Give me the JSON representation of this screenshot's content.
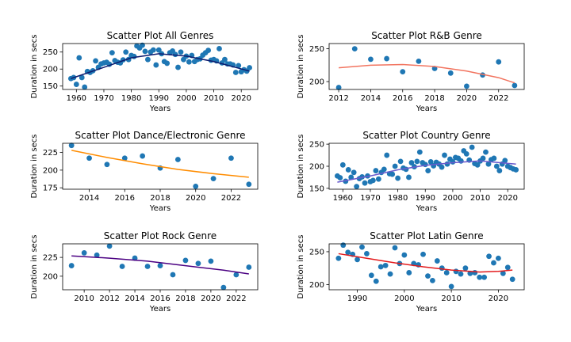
{
  "chart_data": [
    {
      "type": "scatter",
      "title": "Scatter Plot All Genres",
      "xlabel": "Years",
      "ylabel": "Duration in secs",
      "xlim": [
        1955,
        2026
      ],
      "ylim": [
        140,
        275
      ],
      "xticks": [
        1960,
        1970,
        1980,
        1990,
        2000,
        2010,
        2020
      ],
      "yticks": [
        150,
        200,
        250
      ],
      "fit_color": "#0d1b6e",
      "point_color": "#1f77b4",
      "points": [
        [
          1958,
          172
        ],
        [
          1959,
          175
        ],
        [
          1960,
          155
        ],
        [
          1961,
          233
        ],
        [
          1962,
          175
        ],
        [
          1963,
          147
        ],
        [
          1964,
          193
        ],
        [
          1965,
          190
        ],
        [
          1966,
          195
        ],
        [
          1967,
          224
        ],
        [
          1968,
          205
        ],
        [
          1969,
          215
        ],
        [
          1970,
          218
        ],
        [
          1971,
          220
        ],
        [
          1972,
          214
        ],
        [
          1973,
          248
        ],
        [
          1974,
          225
        ],
        [
          1975,
          220
        ],
        [
          1976,
          218
        ],
        [
          1977,
          227
        ],
        [
          1978,
          250
        ],
        [
          1979,
          228
        ],
        [
          1980,
          240
        ],
        [
          1981,
          237
        ],
        [
          1982,
          268
        ],
        [
          1983,
          262
        ],
        [
          1984,
          270
        ],
        [
          1985,
          252
        ],
        [
          1986,
          228
        ],
        [
          1987,
          250
        ],
        [
          1988,
          256
        ],
        [
          1989,
          212
        ],
        [
          1990,
          256
        ],
        [
          1991,
          245
        ],
        [
          1992,
          222
        ],
        [
          1993,
          217
        ],
        [
          1994,
          248
        ],
        [
          1995,
          253
        ],
        [
          1996,
          243
        ],
        [
          1997,
          205
        ],
        [
          1998,
          250
        ],
        [
          1999,
          228
        ],
        [
          2000,
          238
        ],
        [
          2001,
          221
        ],
        [
          2002,
          240
        ],
        [
          2003,
          222
        ],
        [
          2004,
          228
        ],
        [
          2005,
          230
        ],
        [
          2006,
          241
        ],
        [
          2007,
          248
        ],
        [
          2008,
          255
        ],
        [
          2009,
          226
        ],
        [
          2010,
          228
        ],
        [
          2011,
          224
        ],
        [
          2012,
          260
        ],
        [
          2013,
          218
        ],
        [
          2014,
          228
        ],
        [
          2015,
          215
        ],
        [
          2016,
          215
        ],
        [
          2017,
          212
        ],
        [
          2018,
          190
        ],
        [
          2019,
          210
        ],
        [
          2020,
          192
        ],
        [
          2021,
          198
        ],
        [
          2022,
          194
        ],
        [
          2023,
          204
        ]
      ],
      "fit": [
        1958,
        172,
        1970,
        205,
        1980,
        233,
        1990,
        245,
        2000,
        238,
        2010,
        222,
        2023,
        194
      ]
    },
    {
      "type": "scatter",
      "title": "Scatter Plot R&B Genre",
      "xlabel": "Years",
      "ylabel": "Duration in secs",
      "xlim": [
        2011.4,
        2023.6
      ],
      "ylim": [
        188,
        258
      ],
      "xticks": [
        2012,
        2014,
        2016,
        2018,
        2020,
        2022
      ],
      "yticks": [
        200,
        250
      ],
      "fit_color": "#f2745f",
      "point_color": "#1f77b4",
      "points": [
        [
          2012,
          191
        ],
        [
          2013,
          250
        ],
        [
          2014,
          234
        ],
        [
          2015,
          235
        ],
        [
          2016,
          215
        ],
        [
          2017,
          231
        ],
        [
          2018,
          220
        ],
        [
          2019,
          213
        ],
        [
          2020,
          193
        ],
        [
          2021,
          210
        ],
        [
          2022,
          230
        ],
        [
          2023,
          194
        ]
      ],
      "fit": [
        2012,
        221,
        2014,
        225,
        2016,
        226,
        2018,
        223,
        2020,
        216,
        2022,
        206,
        2023,
        198
      ]
    },
    {
      "type": "scatter",
      "title": "Scatter Plot Dance/Electronic Genre",
      "xlabel": "Years",
      "ylabel": "Duration in secs",
      "xlim": [
        2012.5,
        2023.5
      ],
      "ylim": [
        173,
        238
      ],
      "xticks": [
        2014,
        2016,
        2018,
        2020,
        2022
      ],
      "yticks": [
        175,
        200,
        225
      ],
      "fit_color": "#ff8c00",
      "point_color": "#1f77b4",
      "points": [
        [
          2013,
          235
        ],
        [
          2014,
          217
        ],
        [
          2015,
          208
        ],
        [
          2016,
          217
        ],
        [
          2017,
          220
        ],
        [
          2018,
          203
        ],
        [
          2019,
          215
        ],
        [
          2020,
          177
        ],
        [
          2021,
          188
        ],
        [
          2022,
          217
        ],
        [
          2023,
          180
        ]
      ],
      "fit": [
        2013,
        228,
        2015,
        218,
        2017,
        209,
        2019,
        201,
        2021,
        195,
        2023,
        190
      ]
    },
    {
      "type": "scatter",
      "title": "Scatter Plot Country Genre",
      "xlabel": "Years",
      "ylabel": "Duration in secs",
      "xlim": [
        1955,
        2026
      ],
      "ylim": [
        148,
        252
      ],
      "xticks": [
        1960,
        1970,
        1980,
        1990,
        2000,
        2010,
        2020
      ],
      "yticks": [
        150,
        200,
        250
      ],
      "fit_color": "#6a5acd",
      "point_color": "#1f77b4",
      "points": [
        [
          1958,
          178
        ],
        [
          1959,
          174
        ],
        [
          1960,
          203
        ],
        [
          1961,
          166
        ],
        [
          1962,
          192
        ],
        [
          1963,
          175
        ],
        [
          1964,
          186
        ],
        [
          1965,
          154
        ],
        [
          1966,
          172
        ],
        [
          1967,
          176
        ],
        [
          1968,
          162
        ],
        [
          1969,
          178
        ],
        [
          1970,
          165
        ],
        [
          1971,
          168
        ],
        [
          1972,
          190
        ],
        [
          1973,
          171
        ],
        [
          1974,
          186
        ],
        [
          1975,
          193
        ],
        [
          1976,
          225
        ],
        [
          1977,
          183
        ],
        [
          1978,
          182
        ],
        [
          1979,
          200
        ],
        [
          1980,
          173
        ],
        [
          1981,
          211
        ],
        [
          1982,
          196
        ],
        [
          1983,
          193
        ],
        [
          1984,
          175
        ],
        [
          1985,
          208
        ],
        [
          1986,
          199
        ],
        [
          1987,
          211
        ],
        [
          1988,
          232
        ],
        [
          1989,
          208
        ],
        [
          1990,
          204
        ],
        [
          1991,
          190
        ],
        [
          1992,
          210
        ],
        [
          1993,
          201
        ],
        [
          1994,
          209
        ],
        [
          1995,
          205
        ],
        [
          1996,
          198
        ],
        [
          1997,
          225
        ],
        [
          1998,
          205
        ],
        [
          1999,
          216
        ],
        [
          2000,
          210
        ],
        [
          2001,
          220
        ],
        [
          2002,
          218
        ],
        [
          2003,
          212
        ],
        [
          2004,
          235
        ],
        [
          2005,
          228
        ],
        [
          2006,
          214
        ],
        [
          2007,
          243
        ],
        [
          2008,
          206
        ],
        [
          2009,
          203
        ],
        [
          2010,
          212
        ],
        [
          2011,
          218
        ],
        [
          2012,
          232
        ],
        [
          2013,
          205
        ],
        [
          2014,
          215
        ],
        [
          2015,
          218
        ],
        [
          2016,
          200
        ],
        [
          2017,
          190
        ],
        [
          2018,
          205
        ],
        [
          2019,
          213
        ],
        [
          2020,
          200
        ],
        [
          2021,
          197
        ],
        [
          2022,
          194
        ],
        [
          2023,
          192
        ]
      ],
      "fit": [
        1958,
        164,
        1970,
        178,
        1980,
        192,
        1990,
        202,
        2000,
        208,
        2010,
        212,
        2023,
        205
      ]
    },
    {
      "type": "scatter",
      "title": "Scatter Plot Rock Genre",
      "xlabel": "Years",
      "ylabel": "Duration in secs",
      "xlim": [
        2008.3,
        2023.7
      ],
      "ylim": [
        182,
        243
      ],
      "xticks": [
        2010,
        2012,
        2014,
        2016,
        2018,
        2020,
        2022
      ],
      "yticks": [
        200,
        225
      ],
      "fit_color": "#4b0082",
      "point_color": "#1f77b4",
      "points": [
        [
          2009,
          214
        ],
        [
          2010,
          231
        ],
        [
          2011,
          228
        ],
        [
          2012,
          240
        ],
        [
          2013,
          213
        ],
        [
          2014,
          224
        ],
        [
          2015,
          213
        ],
        [
          2016,
          214
        ],
        [
          2017,
          202
        ],
        [
          2018,
          221
        ],
        [
          2019,
          217
        ],
        [
          2020,
          220
        ],
        [
          2021,
          185
        ],
        [
          2022,
          202
        ],
        [
          2023,
          212
        ]
      ],
      "fit": [
        2009,
        227,
        2012,
        224,
        2015,
        220,
        2018,
        214,
        2021,
        208,
        2023,
        203
      ]
    },
    {
      "type": "scatter",
      "title": "Scatter Plot Latin Genre",
      "xlabel": "Years",
      "ylabel": "Duration in secs",
      "xlim": [
        1984,
        2025.5
      ],
      "ylim": [
        192,
        262
      ],
      "xticks": [
        1990,
        2000,
        2010,
        2020
      ],
      "yticks": [
        200,
        250
      ],
      "fit_color": "#e31a1c",
      "point_color": "#1f77b4",
      "points": [
        [
          1986,
          240
        ],
        [
          1987,
          260
        ],
        [
          1988,
          249
        ],
        [
          1989,
          246
        ],
        [
          1990,
          238
        ],
        [
          1991,
          257
        ],
        [
          1992,
          247
        ],
        [
          1993,
          214
        ],
        [
          1994,
          205
        ],
        [
          1995,
          227
        ],
        [
          1996,
          229
        ],
        [
          1997,
          216
        ],
        [
          1998,
          256
        ],
        [
          1999,
          232
        ],
        [
          2000,
          245
        ],
        [
          2001,
          218
        ],
        [
          2002,
          232
        ],
        [
          2003,
          230
        ],
        [
          2004,
          246
        ],
        [
          2005,
          213
        ],
        [
          2006,
          206
        ],
        [
          2007,
          236
        ],
        [
          2008,
          225
        ],
        [
          2009,
          218
        ],
        [
          2010,
          197
        ],
        [
          2011,
          220
        ],
        [
          2012,
          216
        ],
        [
          2013,
          225
        ],
        [
          2014,
          217
        ],
        [
          2015,
          218
        ],
        [
          2016,
          211
        ],
        [
          2017,
          211
        ],
        [
          2018,
          243
        ],
        [
          2019,
          233
        ],
        [
          2020,
          240
        ],
        [
          2021,
          217
        ],
        [
          2022,
          226
        ],
        [
          2023,
          208
        ]
      ],
      "fit": [
        1986,
        247,
        1992,
        240,
        1998,
        233,
        2004,
        227,
        2010,
        222,
        2016,
        219,
        2020,
        220,
        2023,
        222
      ]
    }
  ]
}
